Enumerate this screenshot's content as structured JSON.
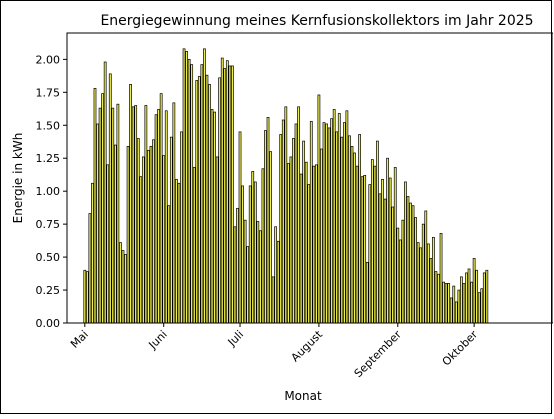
{
  "chart_data": {
    "type": "bar",
    "title": "Energiegewinnung meines Kernfusionskollektors im Jahr 2025",
    "xlabel": "Monat",
    "ylabel": "Energie in kWh",
    "ylim": [
      0,
      2.2
    ],
    "yticks": [
      "0.00",
      "0.25",
      "0.50",
      "0.75",
      "1.00",
      "1.25",
      "1.50",
      "1.75",
      "2.00"
    ],
    "x_tick_labels": [
      "Mai",
      "Juni",
      "Juli",
      "August",
      "September",
      "Oktober"
    ],
    "x_range": [
      "2025-04-24",
      "2025-11-01"
    ],
    "grid": false,
    "bar_color": "#eeee55",
    "start_date": "2025-05-01",
    "values": [
      0.4,
      0.39,
      0.83,
      1.06,
      1.78,
      1.51,
      1.63,
      1.74,
      1.98,
      1.2,
      1.89,
      1.63,
      1.35,
      1.66,
      0.61,
      0.55,
      0.52,
      1.34,
      1.81,
      1.64,
      1.65,
      1.4,
      1.11,
      1.26,
      1.65,
      1.31,
      1.34,
      1.39,
      1.58,
      1.62,
      1.74,
      1.27,
      1.61,
      0.89,
      1.41,
      1.67,
      1.09,
      1.06,
      1.45,
      2.08,
      2.06,
      2.0,
      1.96,
      1.18,
      1.84,
      1.87,
      1.96,
      2.08,
      1.88,
      1.81,
      1.62,
      1.6,
      1.26,
      1.86,
      2.01,
      1.93,
      1.99,
      1.95,
      1.95,
      0.73,
      0.87,
      1.45,
      1.04,
      0.78,
      0.58,
      1.04,
      1.15,
      1.07,
      0.77,
      0.7,
      1.17,
      1.46,
      1.56,
      1.3,
      0.35,
      0.73,
      0.62,
      1.43,
      1.54,
      1.64,
      1.21,
      1.26,
      1.4,
      1.51,
      1.64,
      1.13,
      1.38,
      1.22,
      1.05,
      1.53,
      1.19,
      1.2,
      1.73,
      1.32,
      1.52,
      1.51,
      1.48,
      1.55,
      1.62,
      1.45,
      1.59,
      1.41,
      1.52,
      1.61,
      1.42,
      1.34,
      1.29,
      1.19,
      1.43,
      1.11,
      1.12,
      0.46,
      1.05,
      1.24,
      1.19,
      1.38,
      0.98,
      1.09,
      0.94,
      1.25,
      1.1,
      0.88,
      1.18,
      0.72,
      0.63,
      0.78,
      1.07,
      0.96,
      0.91,
      0.89,
      0.8,
      0.61,
      0.57,
      0.75,
      0.85,
      0.6,
      0.49,
      0.65,
      0.39,
      0.37,
      0.68,
      0.31,
      0.3,
      0.3,
      0.19,
      0.28,
      0.16,
      0.25,
      0.35,
      0.3,
      0.38,
      0.41,
      0.31,
      0.49,
      0.4,
      0.23,
      0.26,
      0.38,
      0.4
    ]
  }
}
